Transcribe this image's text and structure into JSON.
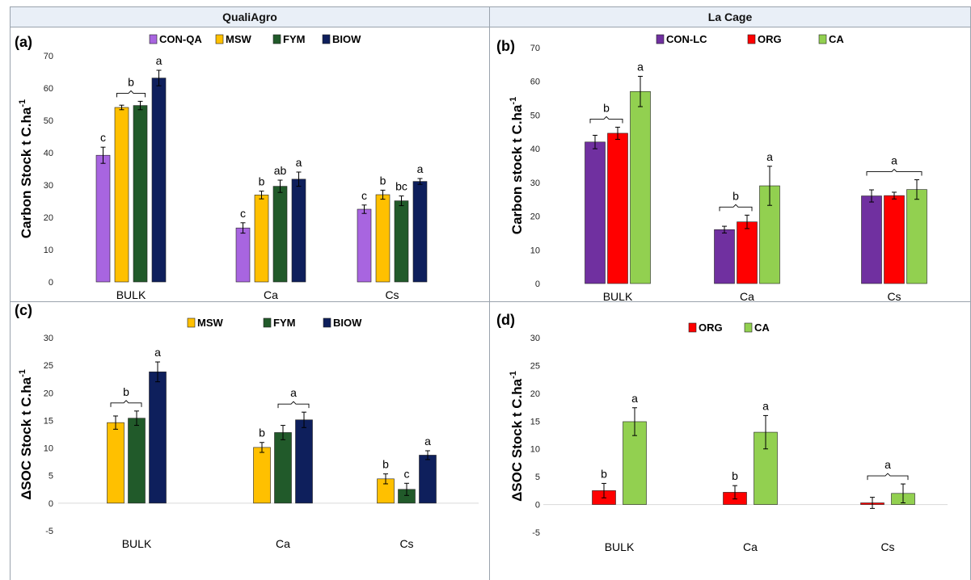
{
  "headers": {
    "left": "QualiAgro",
    "right": "La Cage"
  },
  "chart_data": [
    {
      "panel_label": "(a)",
      "type": "bar",
      "categories": [
        "BULK",
        "Ca",
        "Cs"
      ],
      "ylabel": "Carbon Stock  t C.ha-1",
      "ylim": [
        0,
        70
      ],
      "yticks": [
        0,
        10,
        20,
        30,
        40,
        50,
        60,
        70
      ],
      "legend_placement": "top-center",
      "series": [
        {
          "name": "CON-QA",
          "color": "#a865e0",
          "values": [
            39.2,
            16.7,
            22.5
          ],
          "errors": [
            2.5,
            1.6,
            1.3
          ],
          "letters": [
            "c",
            "c",
            "c"
          ]
        },
        {
          "name": "MSW",
          "color": "#ffc000",
          "values": [
            54.0,
            26.9,
            27.0
          ],
          "errors": [
            0.7,
            1.2,
            1.4
          ],
          "letters": [
            "",
            "b",
            "b"
          ]
        },
        {
          "name": "FYM",
          "color": "#215a2a",
          "values": [
            54.6,
            29.6,
            25.1
          ],
          "errors": [
            1.3,
            1.9,
            1.5
          ],
          "letters": [
            "",
            "ab",
            "bc"
          ]
        },
        {
          "name": "BIOW",
          "color": "#0e1f5c",
          "values": [
            63.1,
            31.8,
            31.1
          ],
          "errors": [
            2.4,
            2.2,
            0.9
          ],
          "letters": [
            "a",
            "a",
            "a"
          ]
        }
      ],
      "brackets": [
        {
          "category": 0,
          "from": 1,
          "to": 2,
          "letter": "b"
        }
      ]
    },
    {
      "panel_label": "(b)",
      "type": "bar",
      "categories": [
        "BULK",
        "Ca",
        "Cs"
      ],
      "ylabel": "Carbon stock  t C.ha-1",
      "ylim": [
        0,
        70
      ],
      "yticks": [
        0,
        10,
        20,
        30,
        40,
        50,
        60,
        70
      ],
      "legend_placement": "top-center",
      "series": [
        {
          "name": "CON-LC",
          "color": "#7030a0",
          "values": [
            42.0,
            16.0,
            26.0
          ],
          "errors": [
            2.0,
            1.0,
            1.8
          ],
          "letters": [
            "",
            "",
            ""
          ]
        },
        {
          "name": "ORG",
          "color": "#ff0000",
          "values": [
            44.6,
            18.3,
            26.1
          ],
          "errors": [
            1.8,
            2.0,
            1.0
          ],
          "letters": [
            "",
            "",
            ""
          ]
        },
        {
          "name": "CA",
          "color": "#92d050",
          "values": [
            57.0,
            29.0,
            27.9
          ],
          "errors": [
            4.5,
            5.8,
            2.9
          ],
          "letters": [
            "a",
            "a",
            ""
          ]
        }
      ],
      "brackets": [
        {
          "category": 0,
          "from": 0,
          "to": 1,
          "letter": "b"
        },
        {
          "category": 1,
          "from": 0,
          "to": 1,
          "letter": "b"
        },
        {
          "category": 2,
          "from": 0,
          "to": 2,
          "letter": "a"
        }
      ]
    },
    {
      "panel_label": "(c)",
      "type": "bar",
      "categories": [
        "BULK",
        "Ca",
        "Cs"
      ],
      "ylabel": "ΔSOC Stock t C.ha-1",
      "ylim": [
        -5,
        30
      ],
      "yticks": [
        -5,
        0,
        5,
        10,
        15,
        20,
        25,
        30
      ],
      "legend_placement": "top-center",
      "series": [
        {
          "name": "MSW",
          "color": "#ffc000",
          "values": [
            14.6,
            10.1,
            4.4
          ],
          "errors": [
            1.2,
            0.9,
            0.9
          ],
          "letters": [
            "",
            "b",
            "b"
          ]
        },
        {
          "name": "FYM",
          "color": "#215a2a",
          "values": [
            15.4,
            12.8,
            2.5
          ],
          "errors": [
            1.3,
            1.3,
            1.1
          ],
          "letters": [
            "",
            "",
            "c"
          ]
        },
        {
          "name": "BIOW",
          "color": "#0e1f5c",
          "values": [
            23.8,
            15.1,
            8.7
          ],
          "errors": [
            1.8,
            1.4,
            0.8
          ],
          "letters": [
            "a",
            "",
            "a"
          ]
        }
      ],
      "brackets": [
        {
          "category": 0,
          "from": 0,
          "to": 1,
          "letter": "b"
        },
        {
          "category": 1,
          "from": 1,
          "to": 2,
          "letter": "a"
        }
      ]
    },
    {
      "panel_label": "(d)",
      "type": "bar",
      "categories": [
        "BULK",
        "Ca",
        "Cs"
      ],
      "ylabel": "ΔSOC Stock t C.ha-1",
      "ylim": [
        -5,
        30
      ],
      "yticks": [
        -5,
        0,
        5,
        10,
        15,
        20,
        25,
        30
      ],
      "legend_placement": "top-center",
      "series": [
        {
          "name": "ORG",
          "color": "#ff0000",
          "values": [
            2.5,
            2.2,
            0.3
          ],
          "errors": [
            1.3,
            1.2,
            1.0
          ],
          "letters": [
            "b",
            "b",
            ""
          ]
        },
        {
          "name": "CA",
          "color": "#92d050",
          "values": [
            14.9,
            13.0,
            2.0
          ],
          "errors": [
            2.5,
            3.0,
            1.7
          ],
          "letters": [
            "a",
            "a",
            ""
          ]
        }
      ],
      "brackets": [
        {
          "category": 2,
          "from": 0,
          "to": 1,
          "letter": "a"
        }
      ]
    }
  ]
}
